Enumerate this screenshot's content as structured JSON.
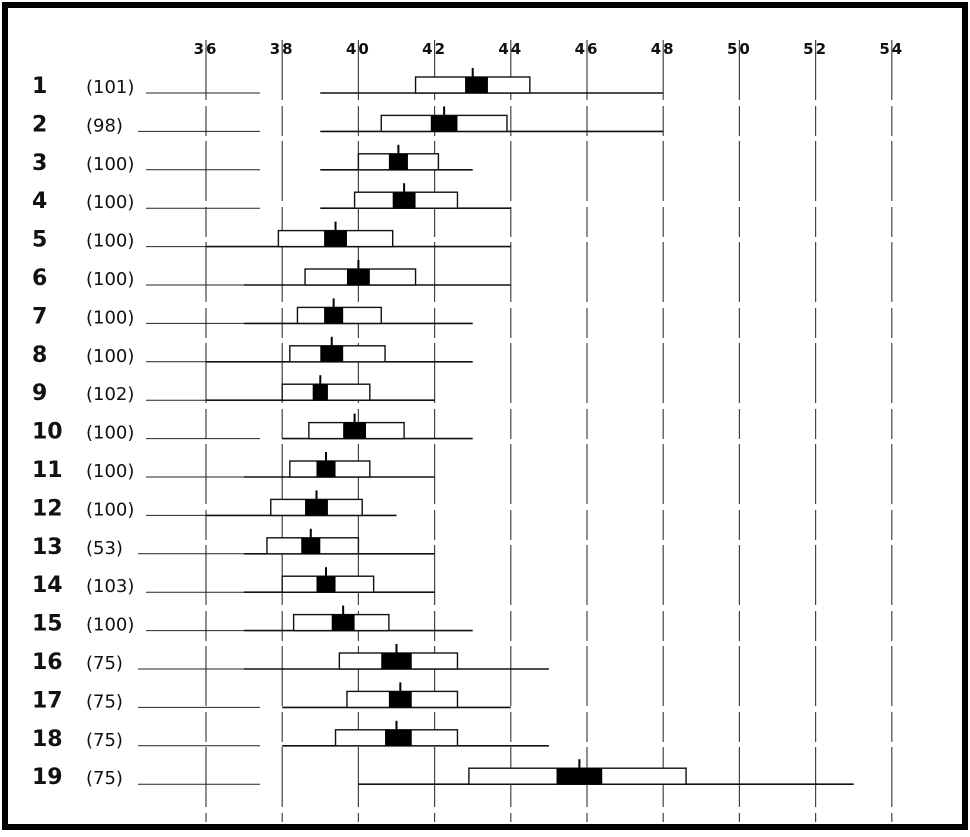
{
  "chart_data": {
    "type": "box",
    "x_ticks": [
      36,
      38,
      40,
      42,
      44,
      46,
      48,
      50,
      52,
      54
    ],
    "xlim": [
      33.3,
      56
    ],
    "grid": true,
    "rows": [
      {
        "label": "1",
        "n": "(101)",
        "min": 39,
        "max": 48,
        "q1": 41.5,
        "q3": 44.5,
        "mean_low": 42.8,
        "mean_high": 43.4,
        "mean": 43.0
      },
      {
        "label": "2",
        "n": "(98)",
        "min": 39,
        "max": 48,
        "q1": 40.6,
        "q3": 43.9,
        "mean_low": 41.9,
        "mean_high": 42.6,
        "mean": 42.25
      },
      {
        "label": "3",
        "n": "(100)",
        "min": 39,
        "max": 43,
        "q1": 40.0,
        "q3": 42.1,
        "mean_low": 40.8,
        "mean_high": 41.3,
        "mean": 41.05
      },
      {
        "label": "4",
        "n": "(100)",
        "min": 39,
        "max": 44,
        "q1": 39.9,
        "q3": 42.6,
        "mean_low": 40.9,
        "mean_high": 41.5,
        "mean": 41.2
      },
      {
        "label": "5",
        "n": "(100)",
        "min": 36,
        "max": 44,
        "q1": 37.9,
        "q3": 40.9,
        "mean_low": 39.1,
        "mean_high": 39.7,
        "mean": 39.4
      },
      {
        "label": "6",
        "n": "(100)",
        "min": 37,
        "max": 44,
        "q1": 38.6,
        "q3": 41.5,
        "mean_low": 39.7,
        "mean_high": 40.3,
        "mean": 40.0
      },
      {
        "label": "7",
        "n": "(100)",
        "min": 37,
        "max": 43,
        "q1": 38.4,
        "q3": 40.6,
        "mean_low": 39.1,
        "mean_high": 39.6,
        "mean": 39.35
      },
      {
        "label": "8",
        "n": "(100)",
        "min": 36,
        "max": 43,
        "q1": 38.2,
        "q3": 40.7,
        "mean_low": 39.0,
        "mean_high": 39.6,
        "mean": 39.3
      },
      {
        "label": "9",
        "n": "(102)",
        "min": 36,
        "max": 42,
        "q1": 38.0,
        "q3": 40.3,
        "mean_low": 38.8,
        "mean_high": 39.2,
        "mean": 39.0
      },
      {
        "label": "10",
        "n": "(100)",
        "min": 38,
        "max": 43,
        "q1": 38.7,
        "q3": 41.2,
        "mean_low": 39.6,
        "mean_high": 40.2,
        "mean": 39.9
      },
      {
        "label": "11",
        "n": "(100)",
        "min": 37,
        "max": 42,
        "q1": 38.2,
        "q3": 40.3,
        "mean_low": 38.9,
        "mean_high": 39.4,
        "mean": 39.15
      },
      {
        "label": "12",
        "n": "(100)",
        "min": 36,
        "max": 41,
        "q1": 37.7,
        "q3": 40.1,
        "mean_low": 38.6,
        "mean_high": 39.2,
        "mean": 38.9
      },
      {
        "label": "13",
        "n": "(53)",
        "min": 37,
        "max": 42,
        "q1": 37.6,
        "q3": 40.0,
        "mean_low": 38.5,
        "mean_high": 39.0,
        "mean": 38.75
      },
      {
        "label": "14",
        "n": "(103)",
        "min": 37,
        "max": 42,
        "q1": 38.0,
        "q3": 40.4,
        "mean_low": 38.9,
        "mean_high": 39.4,
        "mean": 39.15
      },
      {
        "label": "15",
        "n": "(100)",
        "min": 37,
        "max": 43,
        "q1": 38.3,
        "q3": 40.8,
        "mean_low": 39.3,
        "mean_high": 39.9,
        "mean": 39.6
      },
      {
        "label": "16",
        "n": "(75)",
        "min": 37,
        "max": 45,
        "q1": 39.5,
        "q3": 42.6,
        "mean_low": 40.6,
        "mean_high": 41.4,
        "mean": 41.0
      },
      {
        "label": "17",
        "n": "(75)",
        "min": 38,
        "max": 44,
        "q1": 39.7,
        "q3": 42.6,
        "mean_low": 40.8,
        "mean_high": 41.4,
        "mean": 41.1
      },
      {
        "label": "18",
        "n": "(75)",
        "min": 38,
        "max": 45,
        "q1": 39.4,
        "q3": 42.6,
        "mean_low": 40.7,
        "mean_high": 41.4,
        "mean": 41.0
      },
      {
        "label": "19",
        "n": "(75)",
        "min": 40,
        "max": 53,
        "q1": 42.9,
        "q3": 48.6,
        "mean_low": 45.2,
        "mean_high": 46.4,
        "mean": 45.8
      }
    ]
  }
}
